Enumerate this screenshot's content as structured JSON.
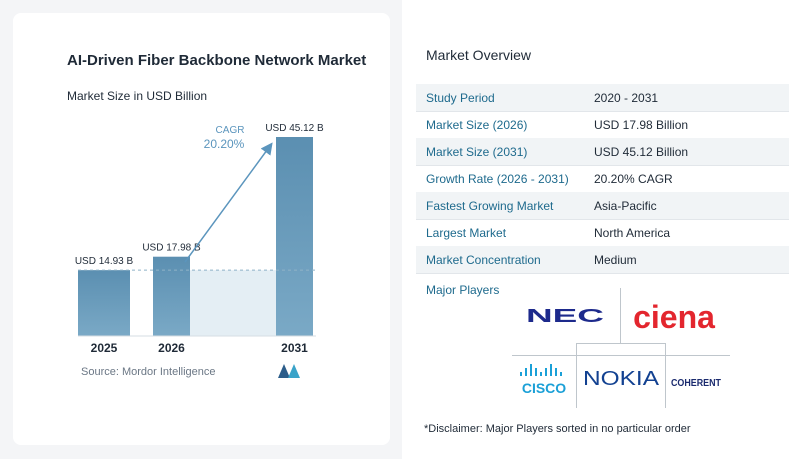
{
  "chart_data": {
    "type": "bar",
    "title": "AI-Driven Fiber Backbone Network Market",
    "subtitle": "Market Size in USD Billion",
    "categories": [
      "2025",
      "2026",
      "2031"
    ],
    "values": [
      14.93,
      17.98,
      45.12
    ],
    "data_labels": [
      "USD 14.93 B",
      "USD 17.98 B",
      "USD 45.12 B"
    ],
    "cagr_label": "CAGR",
    "cagr_value": "20.20%",
    "colors": {
      "bar": "#6b9dbb",
      "bar_top": "#5d8fb0",
      "shade": "#e4eef4",
      "arrow": "#5b95bd",
      "dash": "#8fb2c6"
    }
  },
  "source": "Source:  Mordor Intelligence",
  "overview": {
    "title": "Market Overview",
    "rows": [
      {
        "key": "Study Period",
        "value": "2020 - 2031"
      },
      {
        "key": "Market Size (2026)",
        "value": "USD 17.98 Billion"
      },
      {
        "key": "Market Size (2031)",
        "value": "USD 45.12 Billion"
      },
      {
        "key": "Growth Rate (2026 - 2031)",
        "value": "20.20% CAGR"
      },
      {
        "key": "Fastest Growing Market",
        "value": "Asia-Pacific"
      },
      {
        "key": "Largest Market",
        "value": "North America"
      },
      {
        "key": "Market Concentration",
        "value": "Medium"
      }
    ]
  },
  "major_players": {
    "title": "Major Players",
    "logos": [
      "NEC",
      "ciena",
      "CISCO",
      "NOKIA",
      "COHERENT"
    ]
  },
  "disclaimer": "*Disclaimer: Major Players sorted in no particular order"
}
